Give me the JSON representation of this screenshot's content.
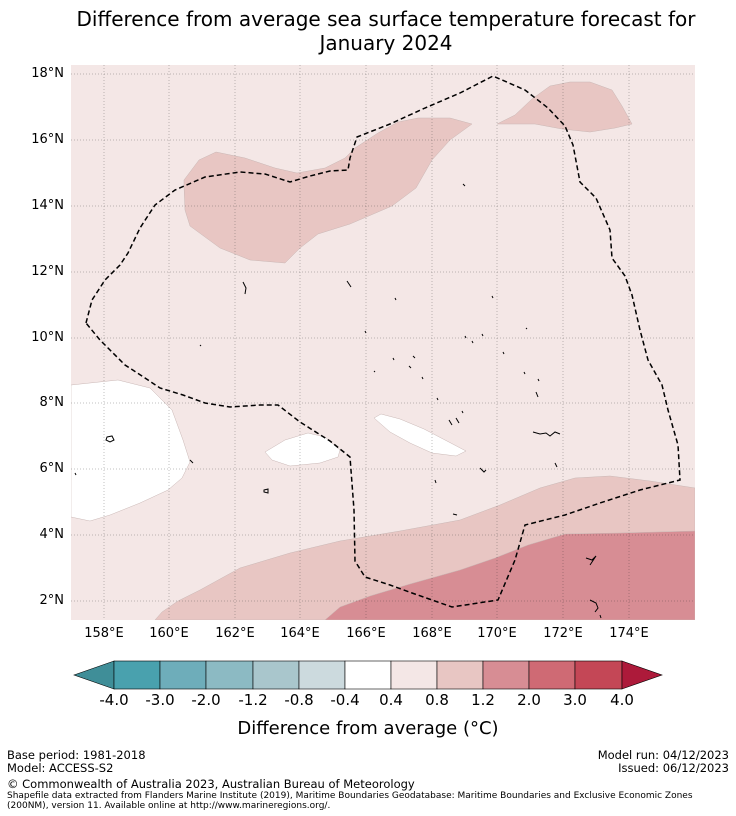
{
  "title_line1": "Difference from average sea surface temperature forecast for",
  "title_line2": "January 2024",
  "map": {
    "lat_labels": [
      "18°N",
      "16°N",
      "14°N",
      "12°N",
      "10°N",
      "8°N",
      "6°N",
      "4°N",
      "2°N"
    ],
    "lon_labels": [
      "158°E",
      "160°E",
      "162°E",
      "164°E",
      "166°E",
      "168°E",
      "170°E",
      "172°E",
      "174°E"
    ],
    "boundary_style": "dashed",
    "colors": {
      "neutral": "#ffffff",
      "light_warm": "#f4e7e6",
      "mid_warm": "#e8c6c3",
      "strong_warm": "#d78d94"
    }
  },
  "colorbar": {
    "labels": [
      "-4.0",
      "-3.0",
      "-2.0",
      "-1.2",
      "-0.8",
      "-0.4",
      "0.4",
      "0.8",
      "1.2",
      "2.0",
      "3.0",
      "4.0"
    ],
    "colors": [
      "#3f8e98",
      "#49a1ae",
      "#6eadba",
      "#8cbac3",
      "#a9c6cc",
      "#ccdade",
      "#ffffff",
      "#f4e7e6",
      "#e8c6c3",
      "#d78d94",
      "#cf6a74",
      "#c44756",
      "#ad1a3a"
    ],
    "title": "Difference from average (°C)"
  },
  "footer": {
    "base_period": "Base period: 1981-2018",
    "model": "Model: ACCESS-S2",
    "model_run": "Model run: 04/12/2023",
    "issued": "Issued: 06/12/2023",
    "copyright": "© Commonwealth of Australia 2023, Australian Bureau of Meteorology",
    "shapefile_line1": "Shapefile data extracted from Flanders Marine Institute (2019), Maritime Boundaries Geodatabase: Maritime Boundaries and Exclusive Economic Zones",
    "shapefile_line2": "(200NM), version 11. Available online at http://www.marineregions.org/."
  }
}
